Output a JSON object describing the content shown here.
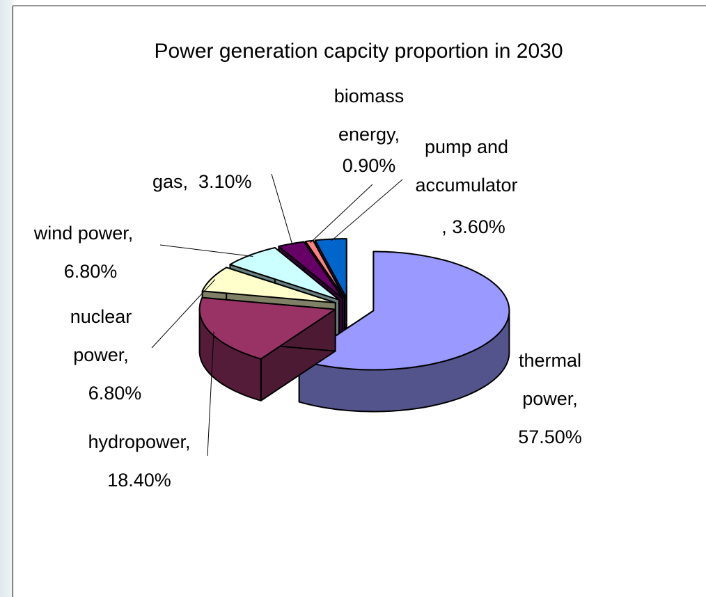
{
  "chart_data": {
    "type": "pie3d",
    "title": "Power generation capcity proportion in 2030",
    "categories": [
      "thermal power,",
      "hydropower,",
      "nuclear power,",
      "wind power,",
      "gas,",
      "biomass energy,",
      "pump and accumulator"
    ],
    "values": [
      57.5,
      18.4,
      6.8,
      6.8,
      3.1,
      0.9,
      3.6
    ],
    "value_labels": [
      "57.50%",
      "18.40%",
      "6.80%",
      "6.80%",
      "3.10%",
      "0.90%",
      ", 3.60%"
    ],
    "colors": [
      "#9999ff",
      "#993366",
      "#ffffcc",
      "#ccffff",
      "#660066",
      "#ff8080",
      "#0066cc"
    ]
  }
}
